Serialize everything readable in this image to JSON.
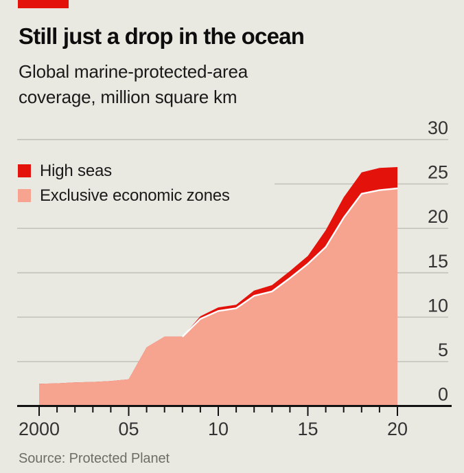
{
  "header": {
    "title": "Still just a drop in the ocean",
    "subtitle_line1": "Global marine-protected-area",
    "subtitle_line2": "coverage, million square km"
  },
  "footer": {
    "source": "Source: Protected Planet"
  },
  "theme": {
    "background": "#E9E9E1",
    "accent_red": "#E3120B",
    "salmon": "#F6A38F",
    "divider_white": "#FFFFFF",
    "gridline": "#C4C4BC",
    "axis": "#121212",
    "tick_text": "#333333",
    "muted_text": "#6F6E64"
  },
  "chart_data": {
    "type": "area",
    "stacked": true,
    "title": "Still just a drop in the ocean",
    "subtitle": "Global marine-protected-area coverage, million square km",
    "unit": "million square km",
    "x": [
      2000,
      2001,
      2002,
      2003,
      2004,
      2005,
      2006,
      2007,
      2008,
      2009,
      2010,
      2011,
      2012,
      2013,
      2014,
      2015,
      2016,
      2017,
      2018,
      2019,
      2020
    ],
    "series": [
      {
        "name": "Exclusive economic zones",
        "color": "#F6A38F",
        "values": [
          2.5,
          2.55,
          2.65,
          2.7,
          2.8,
          3.0,
          6.6,
          7.8,
          7.8,
          9.8,
          10.7,
          11.0,
          12.4,
          12.9,
          14.4,
          16.0,
          17.9,
          21.2,
          23.9,
          24.3,
          24.5
        ]
      },
      {
        "name": "High seas",
        "color": "#E3120B",
        "values": [
          0,
          0,
          0,
          0,
          0,
          0,
          0,
          0,
          0,
          0.3,
          0.4,
          0.4,
          0.6,
          0.7,
          0.8,
          0.9,
          1.9,
          2.3,
          2.4,
          2.5,
          2.4
        ]
      }
    ],
    "legend_order": [
      "High seas",
      "Exclusive economic zones"
    ],
    "ylim": [
      0,
      30
    ],
    "y_ticks": [
      0,
      5,
      10,
      15,
      20,
      25,
      30
    ],
    "y_axis_side": "right",
    "x_tick_positions": [
      2000,
      2005,
      2010,
      2015,
      2020
    ],
    "x_tick_labels": [
      "2000",
      "05",
      "10",
      "15",
      "20"
    ],
    "x_minor_ticks_every_year": true,
    "grid": "horizontal",
    "legend_position": "inside-top-left"
  }
}
